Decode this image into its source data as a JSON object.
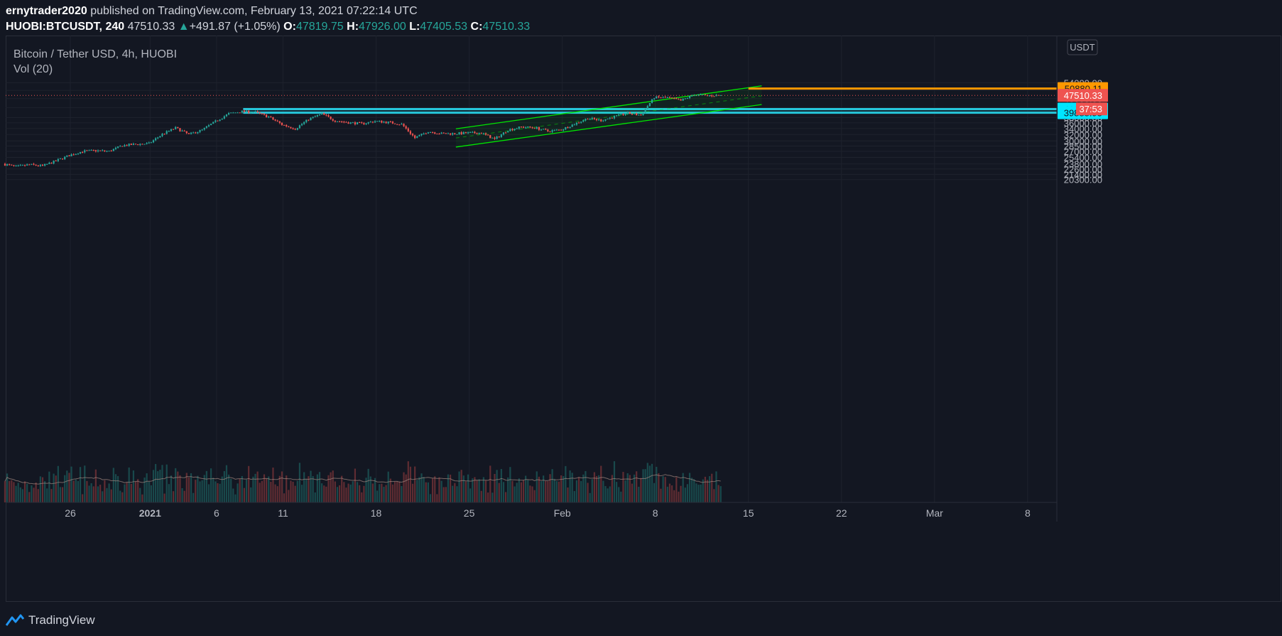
{
  "header": {
    "author": "ernytrader2020",
    "published_text": "published on TradingView.com, February 13, 2021 07:22:14 UTC",
    "symbol": "HUOBI:BTCUSDT, 240",
    "last": "47510.33",
    "change_arrow": "▲",
    "change": "+491.87 (+1.05%)",
    "o_label": "O:",
    "o": "47819.75",
    "h_label": "H:",
    "h": "47926.00",
    "l_label": "L:",
    "l": "47405.53",
    "c_label": "C:",
    "c": "47510.33"
  },
  "legend": {
    "series_title": "Bitcoin / Tether USD, 4h, HUOBI",
    "indicator": "Vol (20)"
  },
  "footer": {
    "brand": "TradingView",
    "logo_icon": "tradingview-logo-icon"
  },
  "colors": {
    "up": "#26a69a",
    "down": "#ef5350",
    "channel": "#00e600",
    "zone": "#26c6da",
    "target": "#ff9800",
    "background": "#131722"
  },
  "chart_data": {
    "type": "candlestick",
    "title": "Bitcoin / Tether USD, 4h, HUOBI",
    "currency_label": "USDT",
    "scale": "log",
    "ylim": [
      20300,
      54000
    ],
    "y_ticks": [
      "54000.00",
      "50000.00",
      "46000.00",
      "42000.00",
      "38000.00",
      "36000.00",
      "34000.00",
      "32000.00",
      "30000.00",
      "28500.00",
      "27000.00",
      "25400.00",
      "23800.00",
      "22600.00",
      "21400.00",
      "20300.00"
    ],
    "x_ticks": [
      "26",
      "2021",
      "6",
      "11",
      "18",
      "25",
      "Feb",
      "8",
      "15",
      "22",
      "Mar",
      "8"
    ],
    "grid": true,
    "price_path": [
      {
        "date": "2020-12-21",
        "close": 23800
      },
      {
        "date": "2020-12-22",
        "close": 23100
      },
      {
        "date": "2020-12-23",
        "close": 23600
      },
      {
        "date": "2020-12-24",
        "close": 23300
      },
      {
        "date": "2020-12-25",
        "close": 24500
      },
      {
        "date": "2020-12-26",
        "close": 25900
      },
      {
        "date": "2020-12-27",
        "close": 27000
      },
      {
        "date": "2020-12-28",
        "close": 27200
      },
      {
        "date": "2020-12-29",
        "close": 27000
      },
      {
        "date": "2020-12-30",
        "close": 28600
      },
      {
        "date": "2020-12-31",
        "close": 29000
      },
      {
        "date": "2021-01-01",
        "close": 29200
      },
      {
        "date": "2021-01-02",
        "close": 32100
      },
      {
        "date": "2021-01-03",
        "close": 34200
      },
      {
        "date": "2021-01-04",
        "close": 32000
      },
      {
        "date": "2021-01-05",
        "close": 33500
      },
      {
        "date": "2021-01-06",
        "close": 36500
      },
      {
        "date": "2021-01-07",
        "close": 39500
      },
      {
        "date": "2021-01-08",
        "close": 40400
      },
      {
        "date": "2021-01-09",
        "close": 40100
      },
      {
        "date": "2021-01-10",
        "close": 38200
      },
      {
        "date": "2021-01-11",
        "close": 35400
      },
      {
        "date": "2021-01-12",
        "close": 33900
      },
      {
        "date": "2021-01-13",
        "close": 37300
      },
      {
        "date": "2021-01-14",
        "close": 39400
      },
      {
        "date": "2021-01-15",
        "close": 36800
      },
      {
        "date": "2021-01-16",
        "close": 36100
      },
      {
        "date": "2021-01-17",
        "close": 35700
      },
      {
        "date": "2021-01-18",
        "close": 36600
      },
      {
        "date": "2021-01-19",
        "close": 36200
      },
      {
        "date": "2021-01-20",
        "close": 35500
      },
      {
        "date": "2021-01-21",
        "close": 30900
      },
      {
        "date": "2021-01-22",
        "close": 33000
      },
      {
        "date": "2021-01-23",
        "close": 32300
      },
      {
        "date": "2021-01-24",
        "close": 32300
      },
      {
        "date": "2021-01-25",
        "close": 32500
      },
      {
        "date": "2021-01-26",
        "close": 32500
      },
      {
        "date": "2021-01-27",
        "close": 30500
      },
      {
        "date": "2021-01-28",
        "close": 33500
      },
      {
        "date": "2021-01-29",
        "close": 34500
      },
      {
        "date": "2021-01-30",
        "close": 34300
      },
      {
        "date": "2021-01-31",
        "close": 33100
      },
      {
        "date": "2021-02-01",
        "close": 33600
      },
      {
        "date": "2021-02-02",
        "close": 35600
      },
      {
        "date": "2021-02-03",
        "close": 37700
      },
      {
        "date": "2021-02-04",
        "close": 36900
      },
      {
        "date": "2021-02-05",
        "close": 38300
      },
      {
        "date": "2021-02-06",
        "close": 39700
      },
      {
        "date": "2021-02-07",
        "close": 38900
      },
      {
        "date": "2021-02-08",
        "close": 46500
      },
      {
        "date": "2021-02-09",
        "close": 46400
      },
      {
        "date": "2021-02-10",
        "close": 45000
      },
      {
        "date": "2021-02-11",
        "close": 47900
      },
      {
        "date": "2021-02-12",
        "close": 47400
      },
      {
        "date": "2021-02-13",
        "close": 47510
      }
    ],
    "volume_axis_visible": false,
    "levels": [
      {
        "price": 50880.11,
        "label": "50880.11",
        "style": "target"
      },
      {
        "price": 47510.33,
        "label": "47510.33",
        "style": "last-price"
      },
      {
        "price": 41352.56,
        "label": "41352.56",
        "style": "zone-top"
      },
      {
        "price": 39888.95,
        "label": "39888.95",
        "style": "zone-bottom"
      }
    ],
    "bar_countdown": "37:53",
    "annotations": {
      "channel_upper": [
        {
          "date": "2021-01-24",
          "price": 33900
        },
        {
          "date": "2021-02-16",
          "price": 52300
        }
      ],
      "channel_lower": [
        {
          "date": "2021-01-24",
          "price": 28200
        },
        {
          "date": "2021-02-16",
          "price": 43300
        }
      ],
      "channel_mid": [
        {
          "date": "2021-01-24",
          "price": 30900
        },
        {
          "date": "2021-02-16",
          "price": 47300
        }
      ],
      "zone_start": "2021-01-08",
      "target_start": "2021-02-15"
    }
  }
}
